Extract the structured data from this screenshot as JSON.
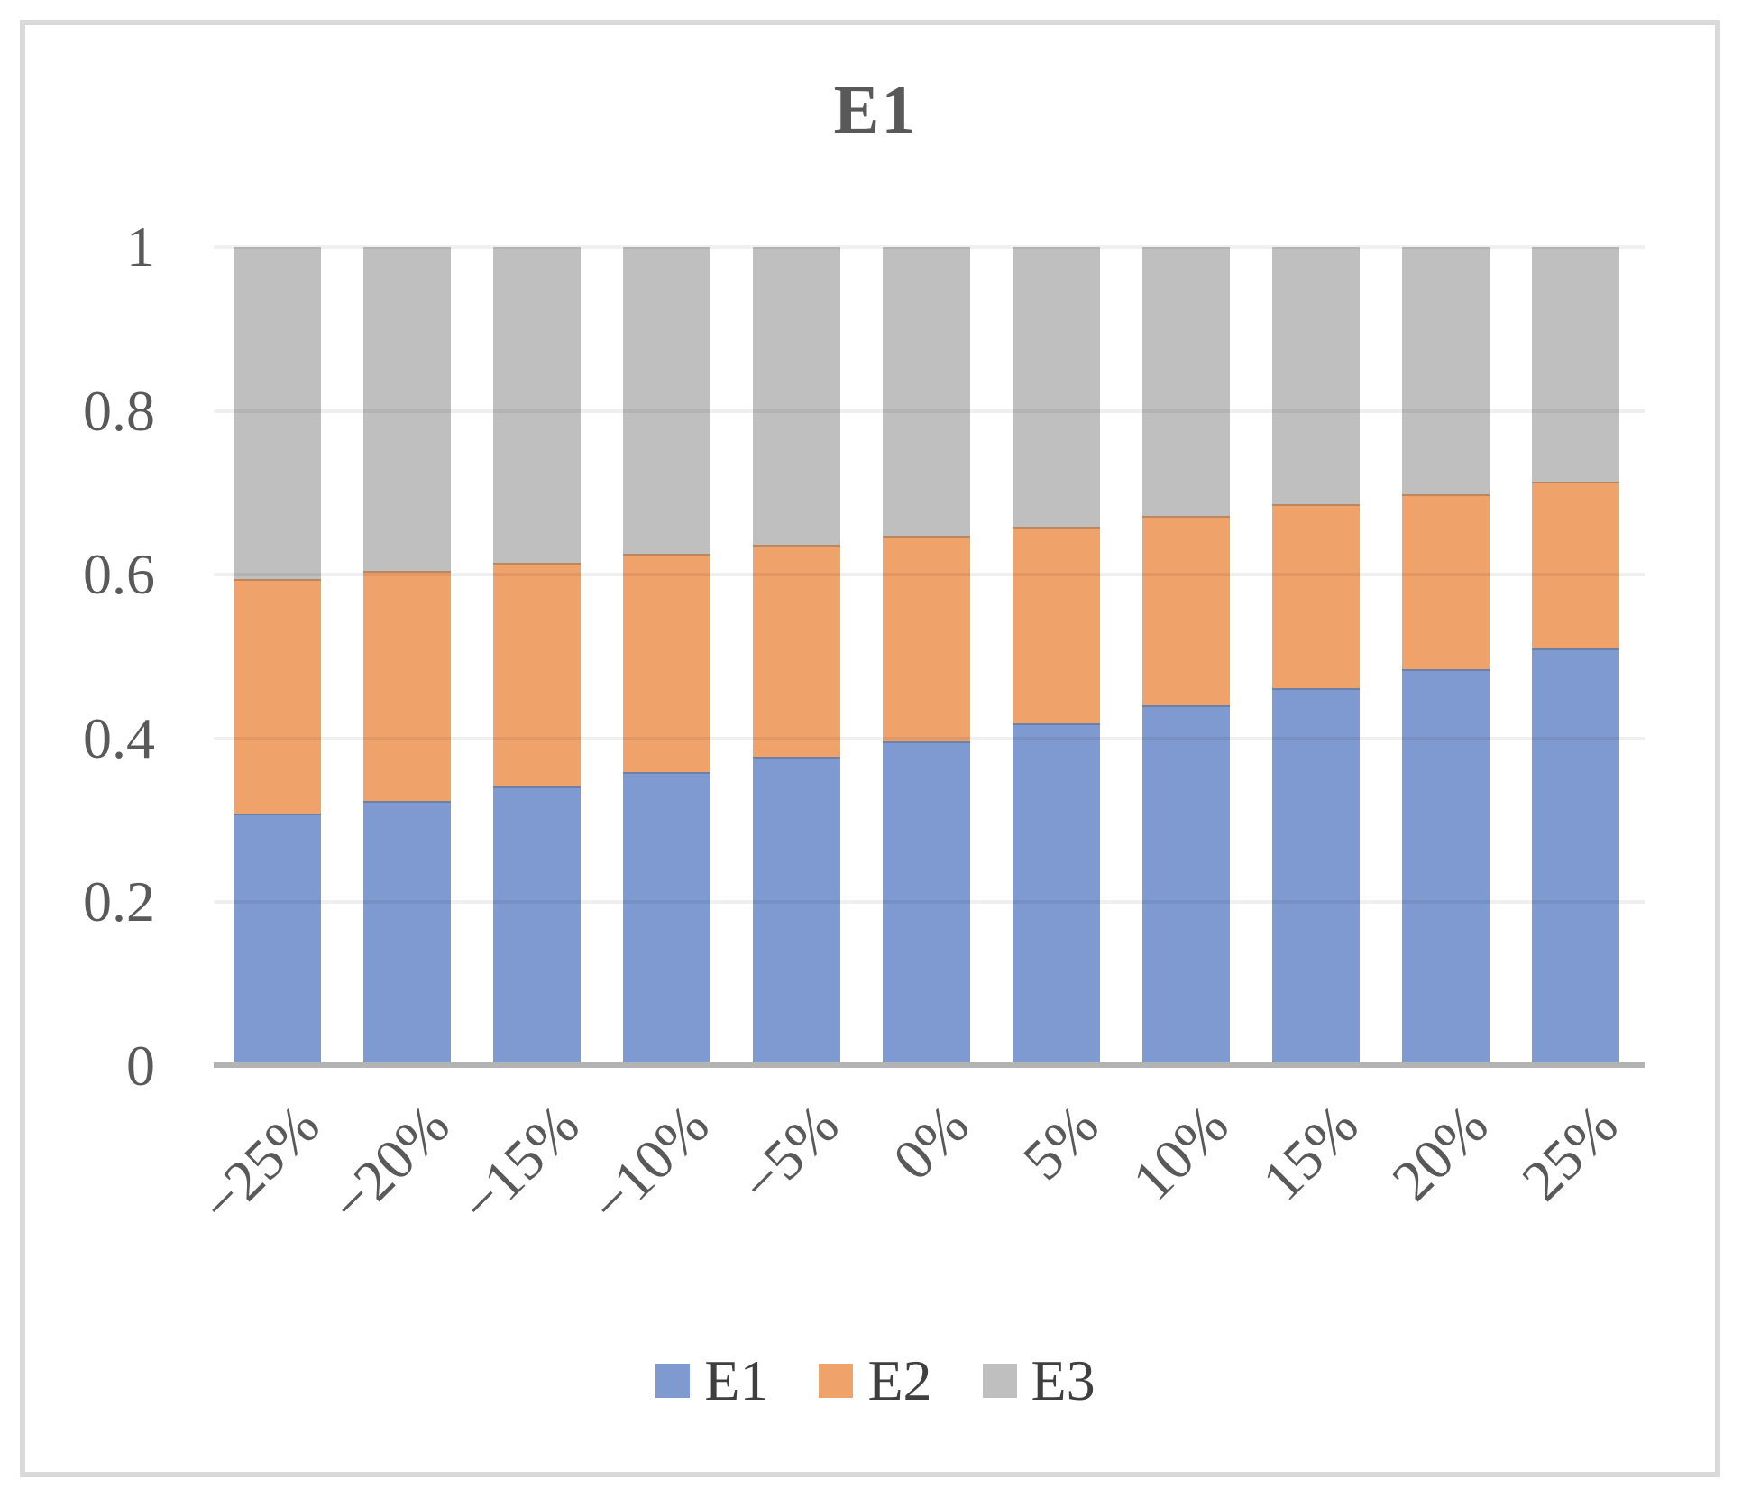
{
  "title": "E1",
  "colors": {
    "series_E1": "#7F9AD1",
    "series_E2": "#F0A26B",
    "series_E3": "#BFBFBF",
    "axis_line": "#B3B3B3",
    "axis_text": "#595959",
    "legend_text": "#3F3F3F",
    "frame_border": "#D9D9D9",
    "background": "#FFFFFF"
  },
  "y_axis": {
    "tick_labels": [
      "1",
      "0.8",
      "0.6",
      "0.4",
      "0.2",
      "0"
    ],
    "tick_values": [
      1,
      0.8,
      0.6,
      0.4,
      0.2,
      0
    ]
  },
  "legend": {
    "position": "bottom",
    "items": [
      {
        "label": "E1",
        "color": "#7F9AD1"
      },
      {
        "label": "E2",
        "color": "#F0A26B"
      },
      {
        "label": "E3",
        "color": "#BFBFBF"
      }
    ]
  },
  "chart_data": {
    "type": "bar",
    "stacked": true,
    "title": "E1",
    "xlabel": "",
    "ylabel": "",
    "ylim": [
      0,
      1
    ],
    "grid": true,
    "legend_position": "bottom",
    "categories": [
      "−25%",
      "−20%",
      "−15%",
      "−10%",
      "−5%",
      "0%",
      "5%",
      "10%",
      "15%",
      "20%",
      "25%"
    ],
    "series": [
      {
        "name": "E1",
        "color": "#7F9AD1",
        "values": [
          0.308,
          0.324,
          0.341,
          0.359,
          0.378,
          0.397,
          0.418,
          0.44,
          0.461,
          0.485,
          0.51
        ]
      },
      {
        "name": "E2",
        "color": "#F0A26B",
        "values": [
          0.287,
          0.281,
          0.274,
          0.267,
          0.259,
          0.251,
          0.241,
          0.232,
          0.225,
          0.213,
          0.204
        ]
      },
      {
        "name": "E3",
        "color": "#BFBFBF",
        "values": [
          0.405,
          0.395,
          0.385,
          0.374,
          0.363,
          0.352,
          0.341,
          0.328,
          0.314,
          0.302,
          0.286
        ]
      }
    ],
    "cumulative_tops_E1_plus_E2": [
      0.595,
      0.605,
      0.615,
      0.626,
      0.637,
      0.648,
      0.659,
      0.672,
      0.686,
      0.698,
      0.714
    ]
  }
}
